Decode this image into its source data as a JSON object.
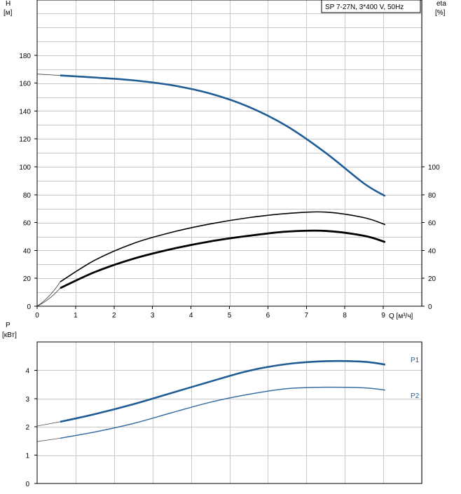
{
  "chart_data": [
    {
      "type": "line",
      "legend": "SP 7-27N, 3*400 V, 50Hz",
      "legend_placement": "top-right",
      "grid": true,
      "xlabel": "Q [м³/ч]",
      "ylabel": "H",
      "ylabel_unit": "[м]",
      "y2label": "eta",
      "y2label_unit": "[%]",
      "xlim": [
        0,
        10
      ],
      "ylim": [
        0,
        220
      ],
      "y2lim": [
        0,
        100
      ],
      "x_ticks": [
        "0",
        "1",
        "2",
        "3",
        "4",
        "5",
        "6",
        "7",
        "8",
        "9"
      ],
      "y_ticks": [
        "0",
        "20",
        "40",
        "60",
        "80",
        "100",
        "120",
        "140",
        "160",
        "180"
      ],
      "y2_ticks": [
        "0",
        "20",
        "40",
        "60",
        "80",
        "100"
      ],
      "series": [
        {
          "color": "#1f5b95",
          "width": 2.6,
          "axis": "left",
          "x": [
            0.6,
            1.5,
            2.5,
            3.5,
            4.5,
            5.5,
            6.5,
            7.5,
            8.5,
            9.05
          ],
          "y": [
            165.5,
            164,
            162,
            158.5,
            152.5,
            143,
            129,
            110,
            88,
            79
          ],
          "ext_x": [
            0,
            0.6
          ],
          "ext_y": [
            166.5,
            165.5
          ]
        },
        {
          "color": "#000000",
          "width": 1.6,
          "axis": "right",
          "x": [
            0.6,
            1.5,
            2.5,
            3.5,
            4.5,
            5.5,
            6.5,
            7.5,
            8.5,
            9.05
          ],
          "y": [
            17.5,
            33,
            45,
            53,
            59,
            63.5,
            66.5,
            67.5,
            63.5,
            58.5
          ],
          "ext_x": [
            0,
            0.6
          ],
          "ext_y": [
            0,
            17.5
          ]
        },
        {
          "color": "#000000",
          "width": 2.8,
          "axis": "right",
          "x": [
            0.6,
            1.5,
            2.5,
            3.5,
            4.5,
            5.5,
            6.5,
            7.5,
            8.5,
            9.05
          ],
          "y": [
            13,
            24.5,
            34,
            41,
            46.5,
            50.5,
            53.5,
            54,
            50.5,
            46
          ],
          "ext_x": [
            0,
            0.6
          ],
          "ext_y": [
            0,
            13
          ]
        }
      ]
    },
    {
      "type": "line",
      "grid": true,
      "ylabel": "P",
      "ylabel_unit": "[кВт]",
      "xlim": [
        0,
        10
      ],
      "ylim": [
        0,
        5
      ],
      "y_ticks": [
        "0",
        "1",
        "2",
        "3",
        "4"
      ],
      "series": [
        {
          "name": "P1",
          "color": "#1f5b95",
          "width": 2.6,
          "x": [
            0.6,
            1.5,
            2.5,
            3.5,
            4.5,
            5.5,
            6.5,
            7.5,
            8.5,
            9.05
          ],
          "y": [
            2.18,
            2.45,
            2.8,
            3.2,
            3.6,
            3.98,
            4.22,
            4.32,
            4.3,
            4.2
          ],
          "ext_x": [
            0,
            0.6
          ],
          "ext_y": [
            2.03,
            2.18
          ]
        },
        {
          "name": "P2",
          "color": "#3a6ea5",
          "width": 1.5,
          "x": [
            0.6,
            1.5,
            2.5,
            3.5,
            4.5,
            5.5,
            6.5,
            7.5,
            8.5,
            9.05
          ],
          "y": [
            1.6,
            1.82,
            2.12,
            2.5,
            2.87,
            3.15,
            3.35,
            3.4,
            3.38,
            3.3
          ],
          "ext_x": [
            0,
            0.6
          ],
          "ext_y": [
            1.48,
            1.6
          ]
        }
      ]
    }
  ]
}
